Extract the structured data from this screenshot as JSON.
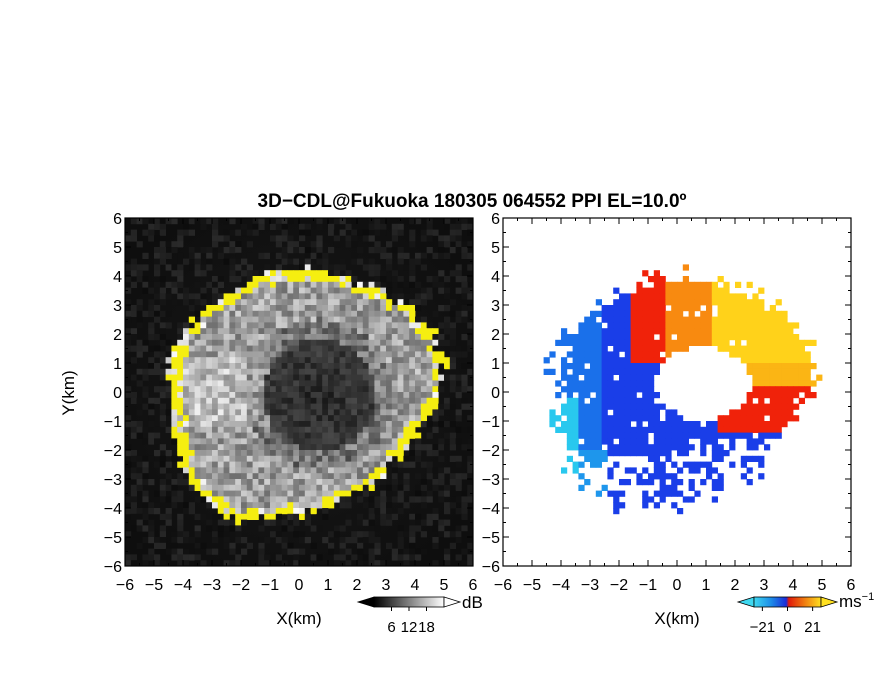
{
  "title": "3D−CDL@Fukuoka 180305 064552 PPI EL=10.0º",
  "chart_data": [
    {
      "type": "heatmap",
      "panel": "left",
      "variable": "SNR",
      "xlabel": "X(km)",
      "ylabel": "Y(km)",
      "xlim": [
        -6,
        6
      ],
      "ylim": [
        -6,
        6
      ],
      "xticks": [
        "−6",
        "−5",
        "−4",
        "−3",
        "−2",
        "−1",
        "0",
        "1",
        "2",
        "3",
        "4",
        "5",
        "6"
      ],
      "yticks": [
        "−6",
        "−5",
        "−4",
        "−3",
        "−2",
        "−1",
        "0",
        "1",
        "2",
        "3",
        "4",
        "5",
        "6"
      ],
      "colorbar": {
        "unit": "dB",
        "ticks": [
          "6",
          "12",
          "18"
        ],
        "range": [
          0,
          24
        ],
        "scheme": "grayscale"
      },
      "background": "#111111",
      "ring_color": "#f5ee10",
      "echo_shape": "ring of signal, radius about 4.5 km, dark hole near center-right"
    },
    {
      "type": "heatmap",
      "panel": "right",
      "variable": "Doppler velocity",
      "xlabel": "X(km)",
      "xlim": [
        -6,
        6
      ],
      "ylim": [
        -6,
        6
      ],
      "xticks": [
        "−6",
        "−5",
        "−4",
        "−3",
        "−2",
        "−1",
        "0",
        "1",
        "2",
        "3",
        "4",
        "5",
        "6"
      ],
      "yticks": [
        "−6",
        "−5",
        "−4",
        "−3",
        "−2",
        "−1",
        "0",
        "1",
        "2",
        "3",
        "4",
        "5",
        "6"
      ],
      "colorbar": {
        "unit": "ms",
        "unit_exponent": "−1",
        "ticks": [
          "−21",
          "0",
          "21"
        ],
        "range": [
          -28,
          28
        ],
        "scheme": "cyan-blue-red-yellow"
      },
      "velocity_colors": {
        "strong_negative": "#29c8ee",
        "negative": "#1a3ee8",
        "positive": "#f0220a",
        "strong_positive": "#ffd21a"
      }
    }
  ]
}
